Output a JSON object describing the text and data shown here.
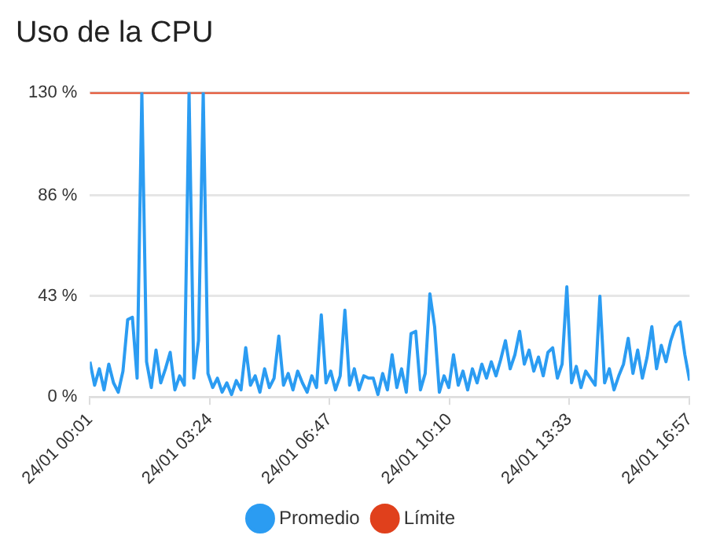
{
  "chart_data": {
    "type": "line",
    "title": "Uso de la CPU",
    "xlim": [
      "--01-24T00:01",
      "--01-24T16:57"
    ],
    "xticks": [
      {
        "value": "--01-24T00:01",
        "label": "24/01 00:01"
      },
      {
        "value": "--01-24T03:24",
        "label": "24/01 03:24"
      },
      {
        "value": "--01-24T06:47",
        "label": "24/01 06:47"
      },
      {
        "value": "--01-24T10:10",
        "label": "24/01 10:10"
      },
      {
        "value": "--01-24T13:33",
        "label": "24/01 13:33"
      },
      {
        "value": "--01-24T16:57",
        "label": "24/01 16:57"
      }
    ],
    "ylim": [
      0,
      130
    ],
    "yticks": [
      {
        "value": 0,
        "label": "0 %"
      },
      {
        "value": 43,
        "label": "43 %"
      },
      {
        "value": 86,
        "label": "86 %"
      },
      {
        "value": 130,
        "label": "130 %"
      }
    ],
    "grid": "y",
    "legend": "bottom",
    "marker": "none",
    "line_style": "solid",
    "series": [
      {
        "name": "Promedio",
        "color": "#2b9cf2",
        "x": [
          "--01-24T00:01",
          "--01-24T00:09",
          "--01-24T00:17",
          "--01-24T00:25",
          "--01-24T00:33",
          "--01-24T00:41",
          "--01-24T00:49",
          "--01-24T00:57",
          "--01-24T01:05",
          "--01-24T01:13",
          "--01-24T01:21",
          "--01-24T01:29",
          "--01-24T01:37",
          "--01-24T01:45",
          "--01-24T01:53",
          "--01-24T02:01",
          "--01-24T02:09",
          "--01-24T02:17",
          "--01-24T02:25",
          "--01-24T02:33",
          "--01-24T02:41",
          "--01-24T02:49",
          "--01-24T02:57",
          "--01-24T03:05",
          "--01-24T03:13",
          "--01-24T03:21",
          "--01-24T03:29",
          "--01-24T03:37",
          "--01-24T03:45",
          "--01-24T03:53",
          "--01-24T04:01",
          "--01-24T04:09",
          "--01-24T04:17",
          "--01-24T04:25",
          "--01-24T04:33",
          "--01-24T04:41",
          "--01-24T04:49",
          "--01-24T04:57",
          "--01-24T05:05",
          "--01-24T05:13",
          "--01-24T05:21",
          "--01-24T05:29",
          "--01-24T05:37",
          "--01-24T05:45",
          "--01-24T05:53",
          "--01-24T06:01",
          "--01-24T06:09",
          "--01-24T06:17",
          "--01-24T06:25",
          "--01-24T06:33",
          "--01-24T06:41",
          "--01-24T06:49",
          "--01-24T06:57",
          "--01-24T07:05",
          "--01-24T07:13",
          "--01-24T07:21",
          "--01-24T07:29",
          "--01-24T07:37",
          "--01-24T07:45",
          "--01-24T07:53",
          "--01-24T08:01",
          "--01-24T08:09",
          "--01-24T08:17",
          "--01-24T08:25",
          "--01-24T08:33",
          "--01-24T08:41",
          "--01-24T08:49",
          "--01-24T08:57",
          "--01-24T09:05",
          "--01-24T09:13",
          "--01-24T09:21",
          "--01-24T09:29",
          "--01-24T09:37",
          "--01-24T09:45",
          "--01-24T09:53",
          "--01-24T10:01",
          "--01-24T10:09",
          "--01-24T10:17",
          "--01-24T10:25",
          "--01-24T10:33",
          "--01-24T10:41",
          "--01-24T10:49",
          "--01-24T10:57",
          "--01-24T11:05",
          "--01-24T11:13",
          "--01-24T11:21",
          "--01-24T11:29",
          "--01-24T11:37",
          "--01-24T11:45",
          "--01-24T11:53",
          "--01-24T12:01",
          "--01-24T12:09",
          "--01-24T12:17",
          "--01-24T12:25",
          "--01-24T12:33",
          "--01-24T12:41",
          "--01-24T12:49",
          "--01-24T12:57",
          "--01-24T13:05",
          "--01-24T13:13",
          "--01-24T13:21",
          "--01-24T13:29",
          "--01-24T13:37",
          "--01-24T13:45",
          "--01-24T13:53",
          "--01-24T14:01",
          "--01-24T14:09",
          "--01-24T14:17",
          "--01-24T14:25",
          "--01-24T14:33",
          "--01-24T14:41",
          "--01-24T14:49",
          "--01-24T14:57",
          "--01-24T15:05",
          "--01-24T15:13",
          "--01-24T15:21",
          "--01-24T15:29",
          "--01-24T15:37",
          "--01-24T15:45",
          "--01-24T15:53",
          "--01-24T16:01",
          "--01-24T16:09",
          "--01-24T16:17",
          "--01-24T16:25",
          "--01-24T16:33",
          "--01-24T16:41",
          "--01-24T16:49",
          "--01-24T16:57"
        ],
        "values": [
          15,
          5,
          12,
          3,
          14,
          6,
          2,
          11,
          33,
          34,
          8,
          130,
          15,
          4,
          20,
          6,
          12,
          19,
          3,
          9,
          5,
          130,
          8,
          24,
          130,
          10,
          4,
          8,
          2,
          6,
          1,
          7,
          3,
          21,
          5,
          9,
          2,
          12,
          4,
          8,
          26,
          5,
          10,
          3,
          11,
          6,
          2,
          9,
          4,
          35,
          6,
          11,
          3,
          9,
          37,
          5,
          12,
          3,
          9,
          8,
          8,
          1,
          10,
          3,
          18,
          4,
          12,
          2,
          27,
          28,
          3,
          10,
          44,
          30,
          2,
          9,
          4,
          18,
          5,
          11,
          3,
          12,
          6,
          14,
          8,
          15,
          9,
          16,
          24,
          12,
          18,
          28,
          14,
          20,
          11,
          17,
          9,
          19,
          21,
          8,
          14,
          47,
          6,
          13,
          4,
          11,
          8,
          5,
          43,
          6,
          12,
          3,
          9,
          14,
          25,
          10,
          20,
          8,
          17,
          30,
          12,
          22,
          15,
          24,
          30,
          32,
          18,
          7
        ]
      },
      {
        "name": "Límite",
        "color": "#e0401c",
        "x": [
          "--01-24T00:01",
          "--01-24T16:57"
        ],
        "values": [
          130,
          130
        ]
      }
    ]
  }
}
